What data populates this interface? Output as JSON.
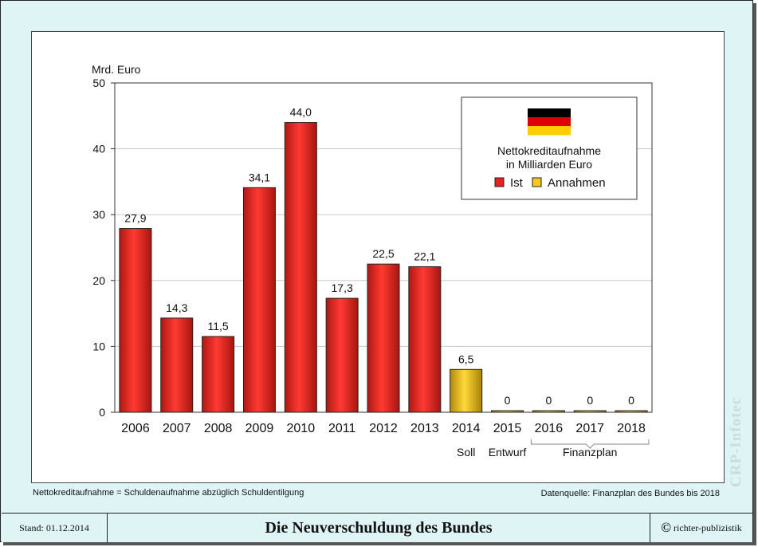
{
  "chart_data": {
    "type": "bar",
    "title": "Nettokreditaufnahme\nin Milliarden Euro",
    "ylabel": "Mrd. Euro",
    "xlabel": "",
    "ylim": [
      0,
      50
    ],
    "yticks": [
      0,
      10,
      20,
      30,
      40,
      50
    ],
    "grid": true,
    "legend_position": "top-right",
    "categories": [
      "2006",
      "2007",
      "2008",
      "2009",
      "2010",
      "2011",
      "2012",
      "2013",
      "2014",
      "2015",
      "2016",
      "2017",
      "2018"
    ],
    "values": [
      27.9,
      14.3,
      11.5,
      34.1,
      44.0,
      17.3,
      22.5,
      22.1,
      6.5,
      0,
      0,
      0,
      0
    ],
    "value_labels": [
      "27,9",
      "14,3",
      "11,5",
      "34,1",
      "44,0",
      "17,3",
      "22,5",
      "22,1",
      "6,5",
      "0",
      "0",
      "0",
      "0"
    ],
    "series_per_bar": [
      "Ist",
      "Ist",
      "Ist",
      "Ist",
      "Ist",
      "Ist",
      "Ist",
      "Ist",
      "Annahmen",
      "Annahmen",
      "Annahmen",
      "Annahmen",
      "Annahmen"
    ],
    "legend": [
      {
        "name": "Ist",
        "color": "#e8231e"
      },
      {
        "name": "Annahmen",
        "color": "#f5c81c"
      }
    ],
    "sub_labels": [
      {
        "text": "Soll",
        "categories": [
          "2014"
        ]
      },
      {
        "text": "Entwurf",
        "categories": [
          "2015"
        ]
      },
      {
        "text": "Finanzplan",
        "categories": [
          "2016",
          "2017",
          "2018"
        ],
        "bracket": true
      }
    ]
  },
  "flag_colors": [
    "#000000",
    "#dd0000",
    "#ffce00"
  ],
  "footnote_left": "Nettokreditaufnahme = Schuldenaufnahme abzüglich Schuldentilgung",
  "footnote_right": "Datenquelle: Finanzplan des Bundes bis 2018",
  "watermark": "CRP-Infotec",
  "footer": {
    "stand": "Stand: 01.12.2014",
    "title": "Die Neuverschuldung des Bundes",
    "copyright_symbol": "©",
    "copyright": "richter-publizistik"
  }
}
